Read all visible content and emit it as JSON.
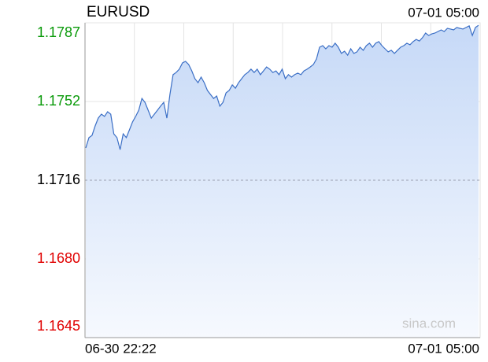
{
  "chart_data": {
    "type": "area",
    "title": "EURUSD",
    "timestamp": "07-01 05:00",
    "x_labels": [
      "06-30 22:22",
      "07-01 05:00"
    ],
    "watermark": "sina.com",
    "color": "#3b6fc6",
    "reference": 1.1716,
    "up_color": "#0a9a0a",
    "down_color": "#e00000",
    "flat_color": "#000000",
    "ylim": [
      1.1645,
      1.1787
    ],
    "yticks": [
      1.1645,
      {
        "value": 1.16805,
        "label": "1.1680"
      },
      1.1716,
      {
        "value": 1.17515,
        "label": "1.1752"
      },
      1.1787
    ],
    "grid": true,
    "values": [
      1.17306,
      1.17352,
      1.17362,
      1.17405,
      1.1744,
      1.17458,
      1.17448,
      1.17469,
      1.17458,
      1.17369,
      1.17352,
      1.17298,
      1.17369,
      1.17352,
      1.17387,
      1.17423,
      1.17448,
      1.17476,
      1.17529,
      1.17511,
      1.17476,
      1.1744,
      1.17458,
      1.17476,
      1.17494,
      1.17511,
      1.1744,
      1.17547,
      1.17636,
      1.17646,
      1.17661,
      1.17689,
      1.17696,
      1.17682,
      1.17653,
      1.17618,
      1.176,
      1.17625,
      1.176,
      1.17565,
      1.17547,
      1.17529,
      1.1754,
      1.17494,
      1.17511,
      1.17554,
      1.17565,
      1.1759,
      1.17575,
      1.176,
      1.17618,
      1.17636,
      1.17646,
      1.17661,
      1.17646,
      1.17661,
      1.17636,
      1.17653,
      1.17671,
      1.17661,
      1.17646,
      1.17653,
      1.17636,
      1.17661,
      1.17618,
      1.17636,
      1.17625,
      1.17636,
      1.17643,
      1.17636,
      1.17653,
      1.17661,
      1.17671,
      1.17682,
      1.17707,
      1.1776,
      1.17767,
      1.17753,
      1.17767,
      1.1776,
      1.17778,
      1.1776,
      1.17732,
      1.17742,
      1.17724,
      1.17753,
      1.17732,
      1.17739,
      1.1776,
      1.17746,
      1.17767,
      1.17778,
      1.1776,
      1.17778,
      1.17785,
      1.17767,
      1.17753,
      1.17739,
      1.17746,
      1.17732,
      1.17746,
      1.1776,
      1.17767,
      1.17778,
      1.17771,
      1.17785,
      1.17795,
      1.17788,
      1.17803,
      1.17824,
      1.17813,
      1.1782,
      1.17824,
      1.17831,
      1.17838,
      1.17831,
      1.17845,
      1.17842,
      1.17838,
      1.17849,
      1.17845,
      1.17842,
      1.17849,
      1.17856,
      1.17813,
      1.17849,
      1.17859
    ]
  }
}
